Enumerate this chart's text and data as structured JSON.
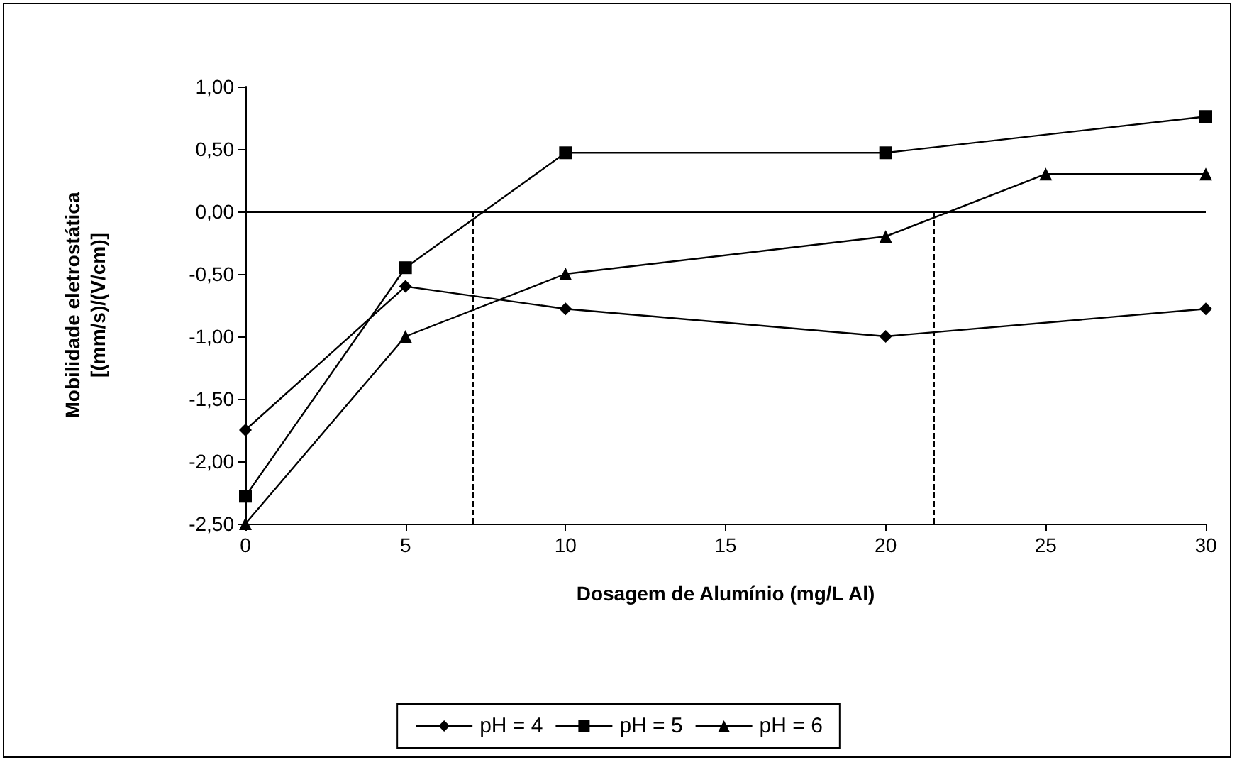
{
  "chart_data": {
    "type": "line",
    "xlabel": "Dosagem de Alumínio (mg/L Al)",
    "ylabel": "Mobilidade eletrostática\n[(mm/s)/(V/cm)]",
    "x": [
      0,
      5,
      10,
      20,
      30
    ],
    "series": [
      {
        "name": "pH = 4",
        "color": "#000000",
        "marker": "diamond",
        "values": [
          -1.75,
          -0.6,
          -0.78,
          -1.0,
          -0.78
        ]
      },
      {
        "name": "pH = 5",
        "color": "#000000",
        "marker": "square",
        "values": [
          -2.28,
          -0.45,
          0.47,
          0.47,
          0.76
        ]
      },
      {
        "name": "pH = 6",
        "color": "#000000",
        "marker": "triangle",
        "x": [
          0,
          5,
          10,
          20,
          25,
          30
        ],
        "values": [
          -2.5,
          -1.0,
          -0.5,
          -0.2,
          0.3,
          0.3
        ]
      }
    ],
    "xlim": [
      0,
      30
    ],
    "xticks": [
      0,
      5,
      10,
      15,
      20,
      25,
      30
    ],
    "ylim": [
      -2.5,
      1
    ],
    "yticks": [
      {
        "value": -2.5,
        "label": "-2,50"
      },
      {
        "value": -2,
        "label": "-2,00"
      },
      {
        "value": -1.5,
        "label": "-1,50"
      },
      {
        "value": -1,
        "label": "-1,00"
      },
      {
        "value": -0.5,
        "label": "-0,50"
      },
      {
        "value": 0,
        "label": "0,00"
      },
      {
        "value": 0.5,
        "label": "0,50"
      },
      {
        "value": 1,
        "label": "1,00"
      }
    ],
    "ref_lines": [
      {
        "axis": "y",
        "value": 0,
        "color": "#000000",
        "line_style": "solid"
      },
      {
        "axis": "x",
        "value": 7.1,
        "color": "#000000",
        "line_style": "dashed"
      },
      {
        "axis": "x",
        "value": 21.5,
        "color": "#000000",
        "line_style": "dashed"
      }
    ],
    "grid": false,
    "legend": "bottom",
    "line_style": "solid"
  }
}
